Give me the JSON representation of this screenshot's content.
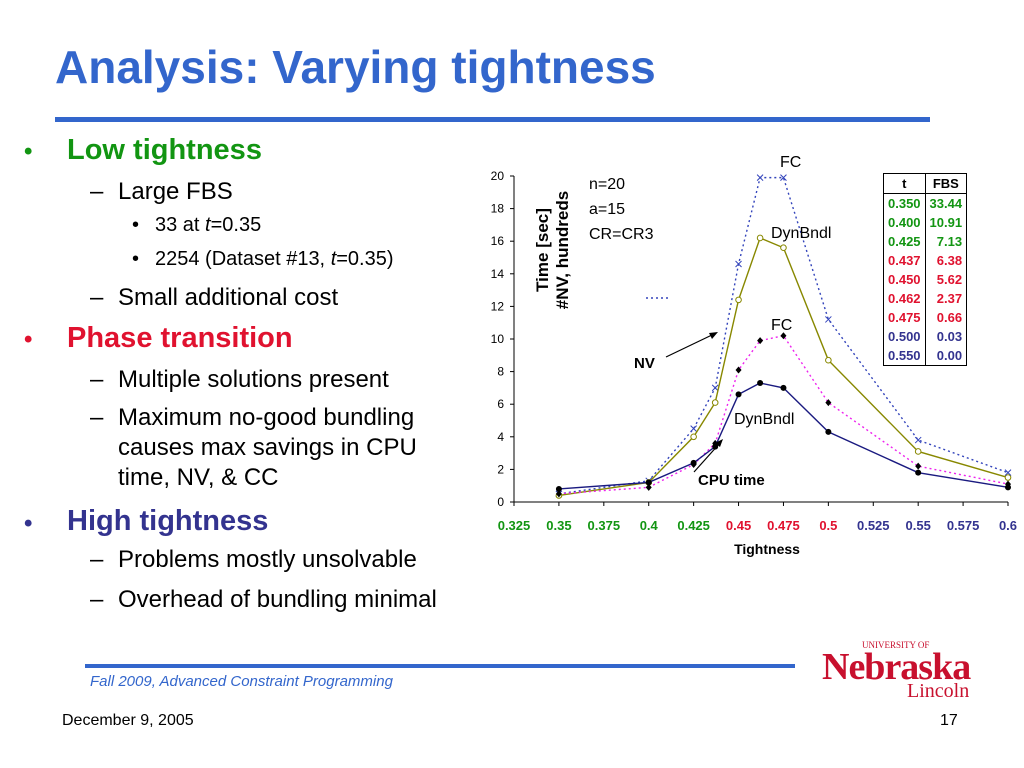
{
  "slide": {
    "title": "Analysis: Varying tightness",
    "bullets": {
      "low": "Low tightness",
      "large_fbs": "Large FBS",
      "at33_pre": "33 at ",
      "at33_t": "t",
      "at33_post": "=0.35",
      "ds_pre": "2254 (Dataset #13, ",
      "ds_t": "t",
      "ds_post": "=0.35)",
      "small_cost": "Small additional cost",
      "phase": "Phase transition",
      "multi": "Multiple solutions present",
      "maxnogood_1": "Maximum no-good bundling",
      "maxnogood_2": "causes max savings in CPU",
      "maxnogood_3": "time, NV,  & CC",
      "high": "High tightness",
      "unsolvable": "Problems mostly unsolvable",
      "overhead": "Overhead of bundling minimal"
    },
    "colors": {
      "title": "#3366cc",
      "low": "#129512",
      "phase": "#e0122f",
      "high": "#33338f"
    },
    "footer": {
      "course": "Fall 2009, Advanced Constraint Programming",
      "date": "December 9, 2005",
      "page": "17"
    },
    "logo": {
      "univ": "UNIVERSITY OF",
      "name": "Nebraska",
      "sub": "Lincoln"
    }
  },
  "fbs_table": {
    "headers": [
      "t",
      "FBS"
    ],
    "rows": [
      {
        "t": "0.350",
        "fbs": "33.44",
        "color": "#129512"
      },
      {
        "t": "0.400",
        "fbs": "10.91",
        "color": "#129512"
      },
      {
        "t": "0.425",
        "fbs": "7.13",
        "color": "#129512"
      },
      {
        "t": "0.437",
        "fbs": "6.38",
        "color": "#e0122f"
      },
      {
        "t": "0.450",
        "fbs": "5.62",
        "color": "#e0122f"
      },
      {
        "t": "0.462",
        "fbs": "2.37",
        "color": "#e0122f"
      },
      {
        "t": "0.475",
        "fbs": "0.66",
        "color": "#e0122f"
      },
      {
        "t": "0.500",
        "fbs": "0.03",
        "color": "#33338f"
      },
      {
        "t": "0.550",
        "fbs": "0.00",
        "color": "#33338f"
      }
    ]
  },
  "chart_data": {
    "type": "line",
    "xlabel": "Tightness",
    "ylabel": "Time [sec]\n#NV, hundreds",
    "ylim": [
      0,
      20
    ],
    "xlim": [
      0.325,
      0.6
    ],
    "yticks": [
      "0",
      "2",
      "4",
      "6",
      "8",
      "10",
      "12",
      "14",
      "16",
      "18",
      "20"
    ],
    "xticks": [
      {
        "label": "0.325",
        "value": 0.325,
        "color": "#129512"
      },
      {
        "label": "0.35",
        "value": 0.35,
        "color": "#129512"
      },
      {
        "label": "0.375",
        "value": 0.375,
        "color": "#129512"
      },
      {
        "label": "0.4",
        "value": 0.4,
        "color": "#129512"
      },
      {
        "label": "0.425",
        "value": 0.425,
        "color": "#129512"
      },
      {
        "label": "0.45",
        "value": 0.45,
        "color": "#e0122f"
      },
      {
        "label": "0.475",
        "value": 0.475,
        "color": "#e0122f"
      },
      {
        "label": "0.5",
        "value": 0.5,
        "color": "#e0122f"
      },
      {
        "label": "0.525",
        "value": 0.525,
        "color": "#33338f"
      },
      {
        "label": "0.55",
        "value": 0.55,
        "color": "#33338f"
      },
      {
        "label": "0.575",
        "value": 0.575,
        "color": "#33338f"
      },
      {
        "label": "0.6",
        "value": 0.6,
        "color": "#33338f"
      }
    ],
    "x": [
      0.35,
      0.4,
      0.425,
      0.437,
      0.45,
      0.462,
      0.475,
      0.5,
      0.55,
      0.6
    ],
    "series": [
      {
        "name": "FC",
        "group": "NV",
        "color": "#3344bb",
        "style": "dotted",
        "marker": "x",
        "values": [
          0.5,
          1.3,
          4.5,
          7.0,
          14.6,
          19.9,
          19.9,
          11.2,
          3.8,
          1.8
        ]
      },
      {
        "name": "DynBndl",
        "group": "NV",
        "color": "#888800",
        "style": "solid",
        "marker": "circle-open",
        "values": [
          0.4,
          1.2,
          4.0,
          6.1,
          12.4,
          16.2,
          15.6,
          8.7,
          3.1,
          1.5
        ]
      },
      {
        "name": "FC",
        "group": "CPU time",
        "color": "#ee22ee",
        "style": "dotted",
        "marker": "diamond",
        "values": [
          0.5,
          0.9,
          2.3,
          3.6,
          8.1,
          9.9,
          10.2,
          6.1,
          2.2,
          1.1
        ]
      },
      {
        "name": "DynBndl",
        "group": "CPU time",
        "color": "#1a1a80",
        "style": "solid",
        "marker": "circle-filled",
        "values": [
          0.8,
          1.2,
          2.4,
          3.4,
          6.6,
          7.3,
          7.0,
          4.3,
          1.8,
          0.9
        ]
      }
    ],
    "annotations": {
      "params": [
        "n=20",
        "a=15",
        "CR=CR3"
      ],
      "fc_top": "FC",
      "dyn_top": "DynBndl",
      "fc_mid": "FC",
      "dyn_low": "DynBndl",
      "nv": "NV",
      "cpu": "CPU time"
    }
  }
}
